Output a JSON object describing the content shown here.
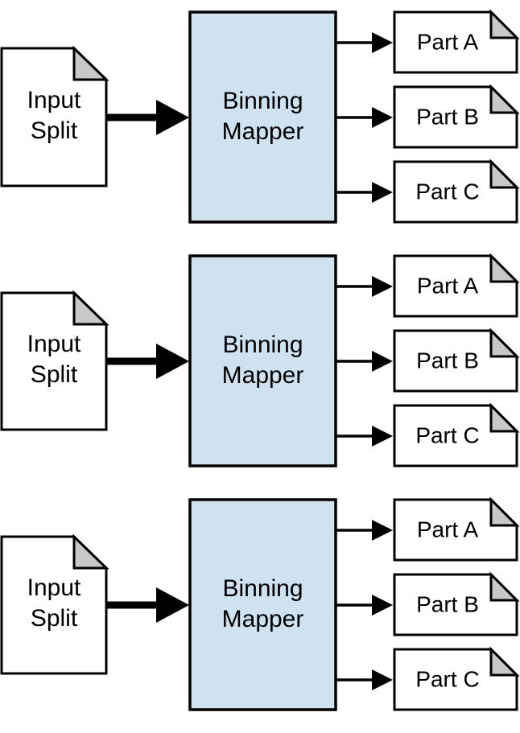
{
  "colors": {
    "mapper_fill": "#cfe2f0",
    "fold_fill": "#c8c8c8",
    "stroke": "#000000",
    "background": "#ffffff"
  },
  "rows": [
    {
      "input": {
        "line1": "Input",
        "line2": "Split"
      },
      "mapper": {
        "line1": "Binning",
        "line2": "Mapper"
      },
      "parts": [
        "Part A",
        "Part B",
        "Part C"
      ]
    },
    {
      "input": {
        "line1": "Input",
        "line2": "Split"
      },
      "mapper": {
        "line1": "Binning",
        "line2": "Mapper"
      },
      "parts": [
        "Part A",
        "Part B",
        "Part C"
      ]
    },
    {
      "input": {
        "line1": "Input",
        "line2": "Split"
      },
      "mapper": {
        "line1": "Binning",
        "line2": "Mapper"
      },
      "parts": [
        "Part A",
        "Part B",
        "Part C"
      ]
    }
  ]
}
